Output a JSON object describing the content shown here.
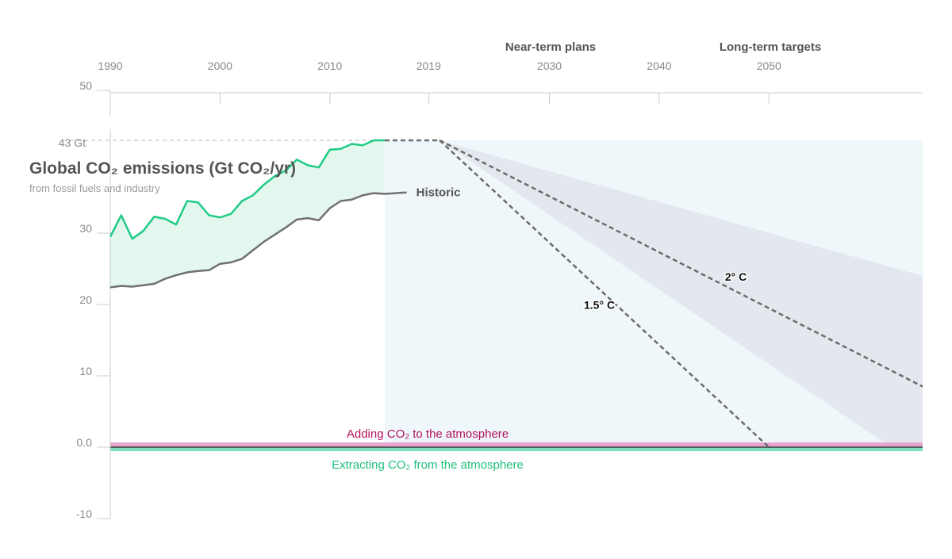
{
  "chart_data": {
    "type": "line",
    "title": "Global CO₂ emissions (Gt CO₂/yr)",
    "subtitle": "from fossil fuels and industry",
    "x_ticks": [
      "1990",
      "2000",
      "2010",
      "2019",
      "2030",
      "2040",
      "2050"
    ],
    "phases": [
      "Near-term plans",
      "Long-term targets"
    ],
    "y_ticks": [
      "50",
      "30",
      "20",
      "10",
      "0.0",
      "-10"
    ],
    "peak_label": "43 Gt",
    "peak_value": 43,
    "xlim": [
      1990,
      2064
    ],
    "ylim": [
      -10,
      50
    ],
    "grid": false,
    "series": [
      {
        "name": "",
        "color": "#1fcc85",
        "x": [
          1990,
          1991,
          1992,
          1993,
          1994,
          1995,
          1996,
          1997,
          1998,
          1999,
          2000,
          2001,
          2002,
          2003,
          2004,
          2005,
          2006,
          2007,
          2008,
          2009,
          2010,
          2011,
          2012,
          2013,
          2014,
          2015
        ],
        "values": [
          29.5,
          32.5,
          29.2,
          30.3,
          32.3,
          32.0,
          31.2,
          34.5,
          34.3,
          32.5,
          32.2,
          32.7,
          34.5,
          35.3,
          36.8,
          38.0,
          38.8,
          40.3,
          39.5,
          39.2,
          41.7,
          41.8,
          42.5,
          42.3,
          43.0,
          43.0
        ]
      },
      {
        "name": "Historic",
        "color": "#707070",
        "x": [
          1990,
          1991,
          1992,
          1993,
          1994,
          1995,
          1996,
          1997,
          1998,
          1999,
          2000,
          2001,
          2002,
          2003,
          2004,
          2005,
          2006,
          2007,
          2008,
          2009,
          2010,
          2011,
          2012,
          2013,
          2014,
          2015,
          2016,
          2017
        ],
        "values": [
          22.4,
          22.6,
          22.5,
          22.7,
          22.9,
          23.6,
          24.1,
          24.5,
          24.7,
          24.8,
          25.7,
          25.9,
          26.4,
          27.6,
          28.8,
          29.8,
          30.8,
          31.9,
          32.1,
          31.8,
          33.5,
          34.5,
          34.7,
          35.3,
          35.6,
          35.5,
          35.6,
          35.7
        ]
      }
    ],
    "plateau": {
      "x": [
        2015,
        2020
      ],
      "value": 43
    },
    "scenarios": [
      {
        "name": "1.5° C",
        "x": [
          2020,
          2050
        ],
        "values": [
          43,
          0
        ],
        "band": [
          [
            2020,
            43,
            43
          ],
          [
            2064,
            -3,
            24
          ]
        ]
      },
      {
        "name": "2° C",
        "x": [
          2020,
          2064
        ],
        "values": [
          43,
          8.5
        ],
        "band": [
          [
            2020,
            43,
            43
          ],
          [
            2064,
            5,
            11.5
          ]
        ]
      }
    ],
    "bands": {
      "adding": {
        "label": "Adding CO₂ to the atmosphere",
        "color": "#e6a4cf"
      },
      "extracting": {
        "label": "Extracting CO₂ from the atmosphere",
        "color": "#7fe0c0"
      }
    },
    "colors": {
      "projection_bg": "#f0f7fb",
      "scenario_band": "#e2e8ed",
      "dashed": "#6b6b6b",
      "historic_fill": "#e3f7ee"
    }
  }
}
